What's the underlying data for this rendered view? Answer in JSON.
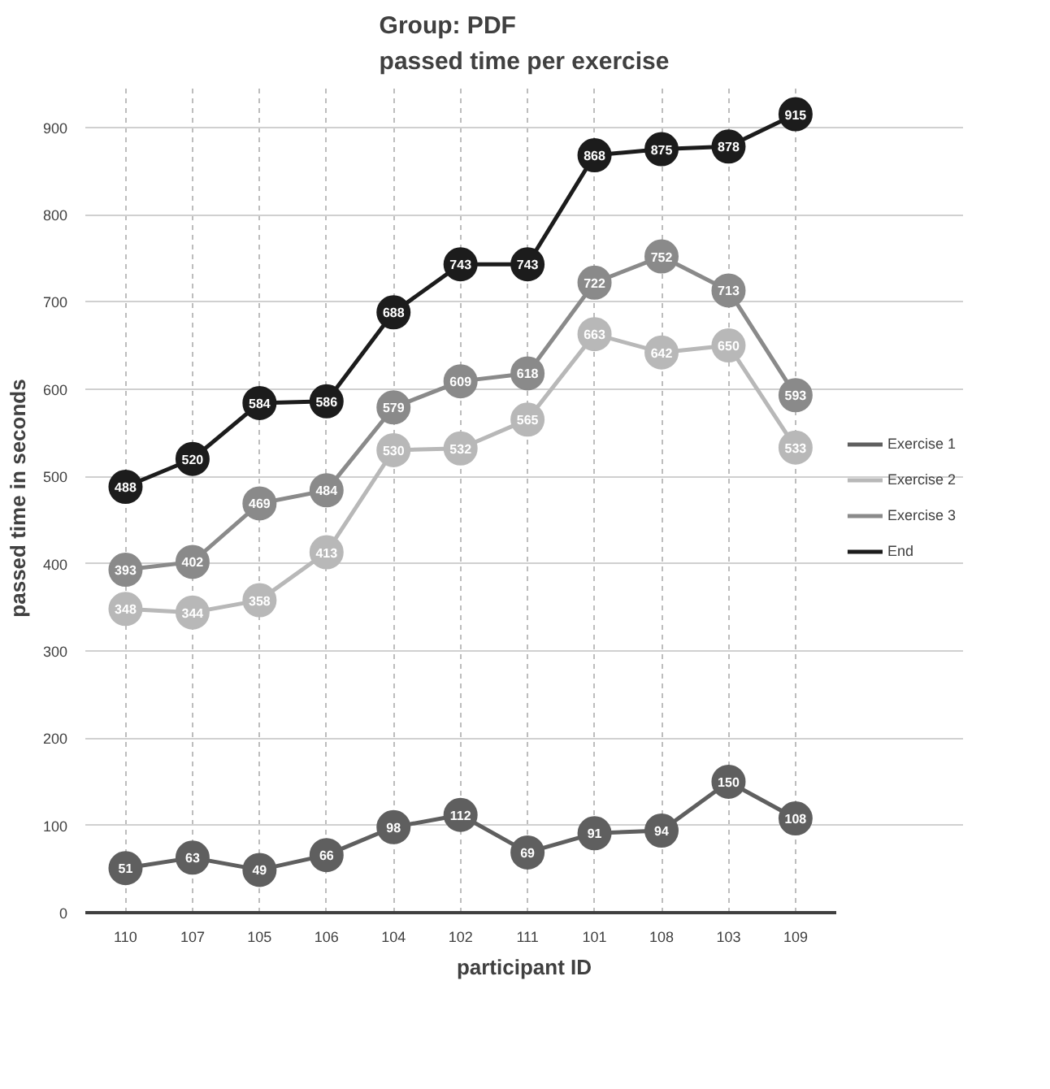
{
  "chart_data": {
    "type": "line",
    "title": "Group: PDF\npassed time per exercise",
    "xlabel": "participant ID",
    "ylabel": "passed time in seconds",
    "categories": [
      "110",
      "107",
      "105",
      "106",
      "104",
      "102",
      "111",
      "101",
      "108",
      "103",
      "109"
    ],
    "series": [
      {
        "name": "Exercise 1",
        "color": "#5f5f5f",
        "values": [
          51,
          63,
          49,
          66,
          98,
          112,
          69,
          91,
          94,
          150,
          108
        ]
      },
      {
        "name": "Exercise 2",
        "color": "#b8b8b8",
        "values": [
          348,
          344,
          358,
          413,
          530,
          532,
          565,
          663,
          642,
          650,
          533
        ]
      },
      {
        "name": "Exercise 3",
        "color": "#8a8a8a",
        "values": [
          393,
          402,
          469,
          484,
          579,
          609,
          618,
          722,
          752,
          713,
          593
        ]
      },
      {
        "name": "End",
        "color": "#1c1c1c",
        "values": [
          488,
          520,
          584,
          586,
          688,
          743,
          743,
          868,
          875,
          878,
          915
        ]
      }
    ],
    "ylim": [
      0,
      950
    ],
    "yticks": [
      0,
      100,
      200,
      300,
      400,
      500,
      600,
      700,
      800,
      900
    ],
    "grid": true,
    "legend": "right",
    "marker": "circle",
    "line_style": "solid",
    "data_labels": true
  }
}
